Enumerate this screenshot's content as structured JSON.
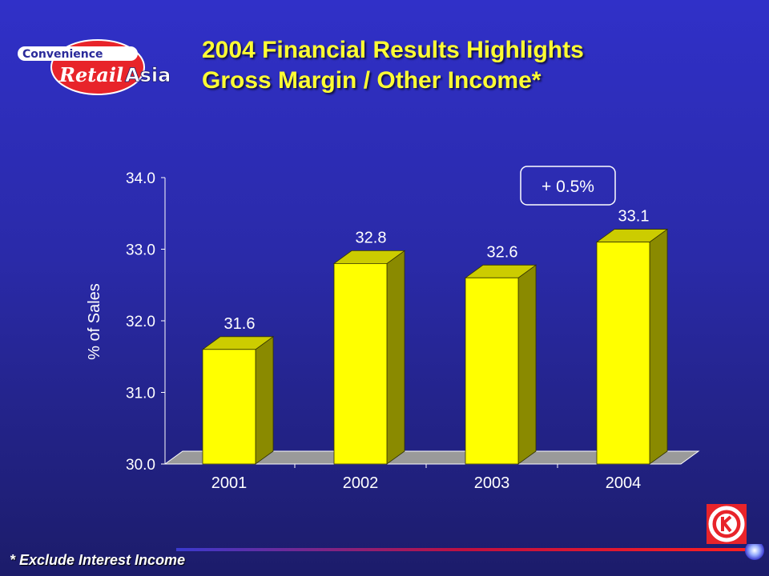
{
  "header": {
    "title_line1": "2004 Financial Results Highlights",
    "title_line2": "Gross Margin / Other Income*",
    "logo_top": "Convenience",
    "logo_mid": "Retail",
    "logo_right": "Asia"
  },
  "footnote": "* Exclude Interest Income",
  "colors": {
    "bar_front": "#ffff00",
    "bar_side": "#8a8a00",
    "bar_top": "#cccc00",
    "title": "#ffff33"
  },
  "chart_data": {
    "type": "bar",
    "categories": [
      "2001",
      "2002",
      "2003",
      "2004"
    ],
    "values": [
      31.6,
      32.8,
      32.6,
      33.1
    ],
    "value_labels": [
      "31.6",
      "32.8",
      "32.6",
      "33.1"
    ],
    "ylabel": "% of Sales",
    "ylim": [
      30.0,
      34.0
    ],
    "yticks": [
      "30.0",
      "31.0",
      "32.0",
      "33.0",
      "34.0"
    ],
    "annotation": "+ 0.5%",
    "legend": "none",
    "grid": false
  }
}
